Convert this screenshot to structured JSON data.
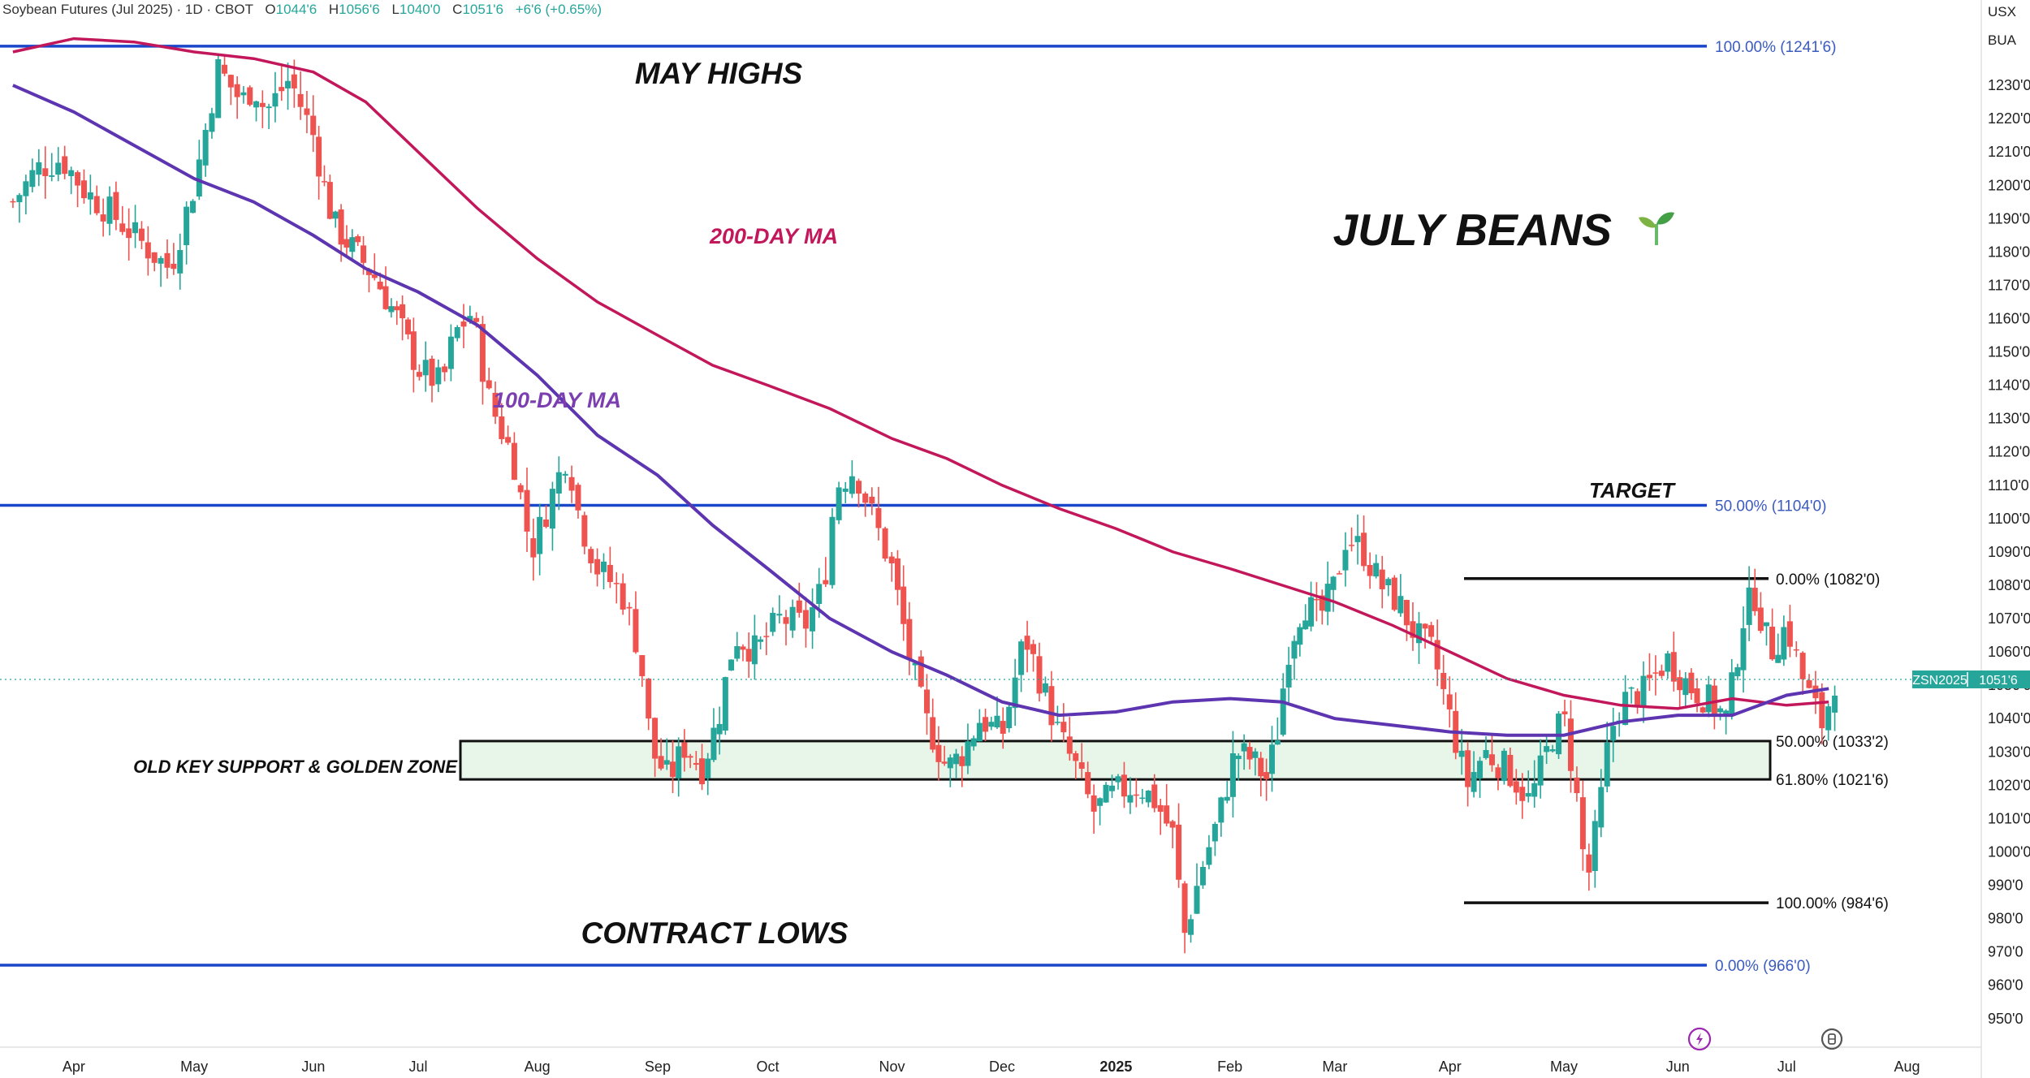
{
  "header": {
    "symbol_title": "Soybean Futures (Jul 2025) · 1D · CBOT",
    "open_label": "O",
    "open": "1044'6",
    "high_label": "H",
    "high": "1056'6",
    "low_label": "L",
    "low": "1040'0",
    "close_label": "C",
    "close": "1051'6",
    "change": "+6'6 (+0.65%)"
  },
  "currency_labels": [
    "USX",
    "BUA"
  ],
  "price_badge": {
    "symbol": "ZSN2025",
    "price": "1051'6",
    "color": "#26a69a"
  },
  "chart_data": {
    "type": "candlestick",
    "title": "JULY BEANS",
    "title_icon": "seedling-icon",
    "annotations": {
      "may_highs": "MAY HIGHS",
      "contract_lows": "CONTRACT LOWS",
      "ma200_label": "200-DAY MA",
      "ma100_label": "100-DAY MA",
      "target": "TARGET",
      "zone_label": "OLD KEY SUPPORT & GOLDEN ZONE"
    },
    "colors": {
      "up": "#26a69a",
      "down": "#ef5350",
      "ma200": "#c2185b",
      "ma100": "#5e35b1",
      "fib_blue": "#1a47c9",
      "zone_fill": "#e8f5e9",
      "ma200_text": "#c2185b",
      "ma100_text": "#7b3fb0"
    },
    "y_axis": {
      "min": 945,
      "max": 1250,
      "ticks": [
        1230,
        1220,
        1210,
        1200,
        1190,
        1180,
        1170,
        1160,
        1150,
        1140,
        1130,
        1120,
        1110,
        1100,
        1090,
        1080,
        1070,
        1060,
        1050,
        1040,
        1030,
        1020,
        1010,
        1000,
        990,
        980,
        970,
        960,
        950
      ],
      "tick_labels": [
        "1230'0",
        "1220'0",
        "1210'0",
        "1200'0",
        "1190'0",
        "1180'0",
        "1170'0",
        "1160'0",
        "1150'0",
        "1140'0",
        "1130'0",
        "1120'0",
        "1110'0",
        "1100'0",
        "1090'0",
        "1080'0",
        "1070'0",
        "1060'0",
        "1050'0",
        "1040'0",
        "1030'0",
        "1020'0",
        "1010'0",
        "1000'0",
        "990'0",
        "980'0",
        "970'0",
        "960'0",
        "950'0"
      ]
    },
    "x_axis": {
      "labels": [
        {
          "label": "Apr",
          "pos": 0.5
        },
        {
          "label": "May",
          "pos": 1.5
        },
        {
          "label": "Jun",
          "pos": 2.5
        },
        {
          "label": "Jul",
          "pos": 3.5
        },
        {
          "label": "Aug",
          "pos": 4.5
        },
        {
          "label": "Sep",
          "pos": 5.5
        },
        {
          "label": "Oct",
          "pos": 6.5
        },
        {
          "label": "Nov",
          "pos": 7.5
        },
        {
          "label": "Dec",
          "pos": 8.5
        },
        {
          "label": "2025",
          "pos": 9.5,
          "bold": true
        },
        {
          "label": "Feb",
          "pos": 10.5
        },
        {
          "label": "Mar",
          "pos": 11.5
        },
        {
          "label": "Apr",
          "pos": 12.5
        },
        {
          "label": "May",
          "pos": 13.5
        },
        {
          "label": "Jun",
          "pos": 14.5
        },
        {
          "label": "Jul",
          "pos": 15.5
        },
        {
          "label": "Aug",
          "pos": 16.5
        }
      ],
      "range": [
        0,
        17
      ]
    },
    "retracement_major": [
      {
        "label": "100.00% (1241'6)",
        "value": 1241.75
      },
      {
        "label": "50.00% (1104'0)",
        "value": 1104
      },
      {
        "label": "0.00% (966'0)",
        "value": 966
      }
    ],
    "retracement_minor": [
      {
        "label": "0.00% (1082'0)",
        "value": 1082
      },
      {
        "label": "50.00% (1033'2)",
        "value": 1033.25
      },
      {
        "label": "61.80% (1021'6)",
        "value": 1021.75
      },
      {
        "label": "100.00% (984'6)",
        "value": 984.75
      }
    ],
    "close_path": [
      [
        0,
        1195
      ],
      [
        0.2,
        1205
      ],
      [
        0.4,
        1208
      ],
      [
        0.6,
        1198
      ],
      [
        0.8,
        1192
      ],
      [
        1.0,
        1185
      ],
      [
        1.2,
        1178
      ],
      [
        1.3,
        1175
      ],
      [
        1.5,
        1200
      ],
      [
        1.7,
        1235
      ],
      [
        1.9,
        1225
      ],
      [
        2.0,
        1230
      ],
      [
        2.1,
        1222
      ],
      [
        2.3,
        1232
      ],
      [
        2.5,
        1215
      ],
      [
        2.6,
        1200
      ],
      [
        2.7,
        1188
      ],
      [
        2.9,
        1180
      ],
      [
        3.1,
        1172
      ],
      [
        3.3,
        1160
      ],
      [
        3.5,
        1145
      ],
      [
        3.7,
        1140
      ],
      [
        3.8,
        1155
      ],
      [
        3.95,
        1162
      ],
      [
        4.1,
        1135
      ],
      [
        4.3,
        1118
      ],
      [
        4.45,
        1090
      ],
      [
        4.6,
        1105
      ],
      [
        4.75,
        1120
      ],
      [
        4.85,
        1100
      ],
      [
        5.0,
        1085
      ],
      [
        5.2,
        1078
      ],
      [
        5.35,
        1060
      ],
      [
        5.45,
        1030
      ],
      [
        5.6,
        1022
      ],
      [
        5.75,
        1032
      ],
      [
        5.9,
        1025
      ],
      [
        6.05,
        1040
      ],
      [
        6.2,
        1065
      ],
      [
        6.4,
        1060
      ],
      [
        6.6,
        1070
      ],
      [
        6.8,
        1068
      ],
      [
        6.95,
        1080
      ],
      [
        7.05,
        1110
      ],
      [
        7.2,
        1115
      ],
      [
        7.35,
        1100
      ],
      [
        7.5,
        1085
      ],
      [
        7.65,
        1060
      ],
      [
        7.8,
        1040
      ],
      [
        8.0,
        1025
      ],
      [
        8.15,
        1030
      ],
      [
        8.3,
        1040
      ],
      [
        8.5,
        1035
      ],
      [
        8.7,
        1065
      ],
      [
        8.85,
        1050
      ],
      [
        9.0,
        1035
      ],
      [
        9.15,
        1025
      ],
      [
        9.3,
        1012
      ],
      [
        9.5,
        1018
      ],
      [
        9.7,
        1020
      ],
      [
        9.85,
        1015
      ],
      [
        10.0,
        1005
      ],
      [
        10.1,
        975
      ],
      [
        10.25,
        995
      ],
      [
        10.4,
        1010
      ],
      [
        10.55,
        1030
      ],
      [
        10.7,
        1028
      ],
      [
        10.85,
        1022
      ],
      [
        10.95,
        1035
      ],
      [
        11.05,
        1060
      ],
      [
        11.2,
        1075
      ],
      [
        11.35,
        1070
      ],
      [
        11.5,
        1080
      ],
      [
        11.6,
        1095
      ],
      [
        11.75,
        1090
      ],
      [
        11.9,
        1080
      ],
      [
        12.05,
        1075
      ],
      [
        12.2,
        1065
      ],
      [
        12.35,
        1060
      ],
      [
        12.5,
        1040
      ],
      [
        12.65,
        1020
      ],
      [
        12.8,
        1030
      ],
      [
        13.0,
        1025
      ],
      [
        13.2,
        1015
      ],
      [
        13.4,
        1035
      ],
      [
        13.5,
        1040
      ],
      [
        13.6,
        1020
      ],
      [
        13.7,
        990
      ],
      [
        13.8,
        1010
      ],
      [
        13.9,
        1035
      ],
      [
        14.0,
        1045
      ],
      [
        14.2,
        1048
      ],
      [
        14.4,
        1058
      ],
      [
        14.6,
        1050
      ],
      [
        14.8,
        1045
      ],
      [
        14.95,
        1040
      ],
      [
        15.1,
        1070
      ],
      [
        15.2,
        1078
      ],
      [
        15.35,
        1060
      ],
      [
        15.5,
        1068
      ],
      [
        15.65,
        1050
      ],
      [
        15.8,
        1038
      ],
      [
        15.9,
        1051.75
      ]
    ],
    "ma200_path": [
      [
        0,
        1240
      ],
      [
        0.5,
        1244
      ],
      [
        1.0,
        1243
      ],
      [
        1.5,
        1240
      ],
      [
        2.0,
        1238
      ],
      [
        2.5,
        1234
      ],
      [
        3.0,
        1225
      ],
      [
        3.5,
        1210
      ],
      [
        4.0,
        1193
      ],
      [
        4.5,
        1178
      ],
      [
        5.0,
        1165
      ],
      [
        5.5,
        1155
      ],
      [
        6.0,
        1146
      ],
      [
        6.5,
        1140
      ],
      [
        7.0,
        1133
      ],
      [
        7.5,
        1124
      ],
      [
        8.0,
        1118
      ],
      [
        8.5,
        1110
      ],
      [
        9.0,
        1103
      ],
      [
        9.5,
        1097
      ],
      [
        10.0,
        1090
      ],
      [
        10.5,
        1085
      ],
      [
        11.0,
        1080
      ],
      [
        11.5,
        1075
      ],
      [
        12.0,
        1068
      ],
      [
        12.5,
        1060
      ],
      [
        13.0,
        1052
      ],
      [
        13.5,
        1047
      ],
      [
        14.0,
        1044
      ],
      [
        14.5,
        1043
      ],
      [
        15.0,
        1046
      ],
      [
        15.5,
        1044
      ],
      [
        15.85,
        1045
      ]
    ],
    "ma100_path": [
      [
        0,
        1230
      ],
      [
        0.5,
        1222
      ],
      [
        1.0,
        1212
      ],
      [
        1.5,
        1202
      ],
      [
        2.0,
        1195
      ],
      [
        2.5,
        1185
      ],
      [
        3.0,
        1175
      ],
      [
        3.5,
        1168
      ],
      [
        4.0,
        1158
      ],
      [
        4.5,
        1143
      ],
      [
        5.0,
        1125
      ],
      [
        5.5,
        1113
      ],
      [
        6.0,
        1098
      ],
      [
        6.5,
        1085
      ],
      [
        7.0,
        1070
      ],
      [
        7.5,
        1060
      ],
      [
        8.0,
        1053
      ],
      [
        8.5,
        1045
      ],
      [
        9.0,
        1041
      ],
      [
        9.5,
        1042
      ],
      [
        10.0,
        1045
      ],
      [
        10.5,
        1046
      ],
      [
        11.0,
        1045
      ],
      [
        11.5,
        1040
      ],
      [
        12.0,
        1038
      ],
      [
        12.5,
        1036
      ],
      [
        13.0,
        1035
      ],
      [
        13.5,
        1035
      ],
      [
        14.0,
        1039
      ],
      [
        14.5,
        1041
      ],
      [
        15.0,
        1041
      ],
      [
        15.5,
        1047
      ],
      [
        15.85,
        1049
      ]
    ]
  }
}
